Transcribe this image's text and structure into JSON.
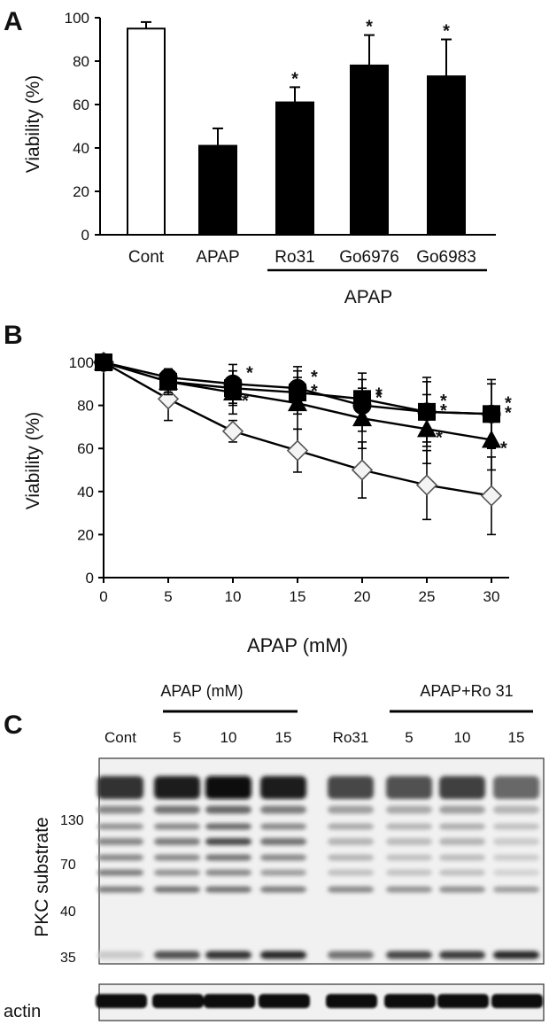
{
  "panels": {
    "a": {
      "letter": "A"
    },
    "b": {
      "letter": "B"
    },
    "c": {
      "letter": "C"
    }
  },
  "chart_data": [
    {
      "panel": "A",
      "type": "bar",
      "ylabel": "Viability (%)",
      "ylim": [
        0,
        100
      ],
      "yticks": [
        0,
        20,
        40,
        60,
        80,
        100
      ],
      "categories": [
        "Cont",
        "APAP",
        "Ro31",
        "Go6976",
        "Go6983"
      ],
      "values": [
        95,
        41,
        61,
        78,
        73
      ],
      "errors": [
        3,
        8,
        7,
        14,
        17
      ],
      "fills": [
        "#ffffff",
        "#000000",
        "#000000",
        "#000000",
        "#000000"
      ],
      "significant": [
        false,
        false,
        true,
        true,
        true
      ],
      "significance_marker": "*",
      "group_label": "APAP",
      "grid": false
    },
    {
      "panel": "B",
      "type": "line",
      "xlabel": "APAP (mM)",
      "ylabel": "Viability (%)",
      "x": [
        0,
        5,
        10,
        15,
        20,
        25,
        30
      ],
      "xlim": [
        0,
        30
      ],
      "ylim": [
        0,
        100
      ],
      "yticks": [
        0,
        20,
        40,
        60,
        80,
        100
      ],
      "grid": false,
      "significance_marker": "*",
      "series": [
        {
          "marker": "diamond-open",
          "values": [
            100,
            83,
            68,
            59,
            50,
            43,
            38
          ],
          "errors": [
            2,
            10,
            5,
            10,
            13,
            16,
            18
          ],
          "stars": []
        },
        {
          "marker": "triangle",
          "values": [
            100,
            91,
            86,
            81,
            74,
            69,
            64
          ],
          "errors": [
            2,
            6,
            10,
            12,
            14,
            16,
            14
          ],
          "stars": [
            10,
            25,
            30
          ]
        },
        {
          "marker": "square",
          "values": [
            100,
            91,
            88,
            86,
            83,
            77,
            76
          ],
          "errors": [
            2,
            5,
            8,
            10,
            12,
            16,
            16
          ],
          "stars": [
            15,
            20,
            25,
            30
          ]
        },
        {
          "marker": "circle",
          "values": [
            100,
            93,
            90,
            88,
            80,
            77,
            76
          ],
          "errors": [
            2,
            4,
            9,
            10,
            12,
            14,
            14
          ],
          "stars": [
            10,
            15,
            20,
            25,
            30
          ]
        }
      ]
    },
    {
      "panel": "C",
      "type": "blot",
      "groups": [
        {
          "label": "APAP (mM)",
          "lanes": [
            2,
            3,
            4
          ]
        },
        {
          "label": "APAP+Ro 31",
          "lanes": [
            6,
            7,
            8
          ]
        }
      ],
      "lanes": [
        "Cont",
        "5",
        "10",
        "15",
        "Ro31",
        "5",
        "10",
        "15"
      ],
      "ylabel": "PKC substrate",
      "mw_markers": [
        "130",
        "70",
        "40",
        "35"
      ],
      "loading_label": "actin"
    }
  ]
}
